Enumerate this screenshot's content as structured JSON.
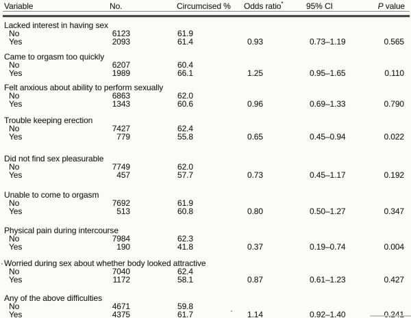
{
  "page": {
    "background": "#fbfbf8",
    "text_color": "#1f1f1f"
  },
  "header": {
    "variable": "Variable",
    "no": "No.",
    "circumcised": "Circumcised %",
    "odds_ratio": {
      "text": "Odds ratio",
      "sup": "*"
    },
    "ci": "95% CI",
    "p_italic": "P",
    "p_rest": " value"
  },
  "artifacts": {
    "worried_prefix_dot": "·"
  },
  "chart_data": {
    "type": "table",
    "columns": [
      "Variable",
      "No.",
      "Circumcised %",
      "Odds ratio*",
      "95% CI",
      "P value"
    ],
    "groups": [
      {
        "variable": "Lacked interest in having sex",
        "rows": [
          {
            "level": "No",
            "n": "6123",
            "circumcised_pct": "61.9",
            "odds_ratio": "",
            "ci_95": "",
            "p_value": ""
          },
          {
            "level": "Yes",
            "n": "2093",
            "circumcised_pct": "61.4",
            "odds_ratio": "0.93",
            "ci_95": "0.73–1.19",
            "p_value": "0.565"
          }
        ]
      },
      {
        "variable": "Came to orgasm too quickly",
        "rows": [
          {
            "level": "No",
            "n": "6207",
            "circumcised_pct": "60.4",
            "odds_ratio": "",
            "ci_95": "",
            "p_value": ""
          },
          {
            "level": "Yes",
            "n": "1989",
            "circumcised_pct": "66.1",
            "odds_ratio": "1.25",
            "ci_95": "0.95–1.65",
            "p_value": "0.110"
          }
        ]
      },
      {
        "variable": "Felt anxious about ability to perform sexually",
        "rows": [
          {
            "level": "No",
            "n": "6863",
            "circumcised_pct": "62.0",
            "odds_ratio": "",
            "ci_95": "",
            "p_value": ""
          },
          {
            "level": "Yes",
            "n": "1343",
            "circumcised_pct": "60.6",
            "odds_ratio": "0.96",
            "ci_95": "0.69–1.33",
            "p_value": "0.790"
          }
        ]
      },
      {
        "variable": "Trouble keeping erection",
        "rows": [
          {
            "level": "No",
            "n": "7427",
            "circumcised_pct": "62.4",
            "odds_ratio": "",
            "ci_95": "",
            "p_value": ""
          },
          {
            "level": "Yes",
            "n": "779",
            "circumcised_pct": "55.8",
            "odds_ratio": "0.65",
            "ci_95": "0.45–0.94",
            "p_value": "0.022"
          }
        ]
      },
      {
        "variable": "Did not find sex pleasurable",
        "rows": [
          {
            "level": "No",
            "n": "7749",
            "circumcised_pct": "62.0",
            "odds_ratio": "",
            "ci_95": "",
            "p_value": ""
          },
          {
            "level": "Yes",
            "n": "457",
            "circumcised_pct": "57.7",
            "odds_ratio": "0.73",
            "ci_95": "0.45–1.17",
            "p_value": "0.192"
          }
        ]
      },
      {
        "variable": "Unable to come to orgasm",
        "rows": [
          {
            "level": "No",
            "n": "7692",
            "circumcised_pct": "61.9",
            "odds_ratio": "",
            "ci_95": "",
            "p_value": ""
          },
          {
            "level": "Yes",
            "n": "513",
            "circumcised_pct": "60.8",
            "odds_ratio": "0.80",
            "ci_95": "0.50–1.27",
            "p_value": "0.347"
          }
        ]
      },
      {
        "variable": "Physical pain during intercourse",
        "rows": [
          {
            "level": "No",
            "n": "7984",
            "circumcised_pct": "62.3",
            "odds_ratio": "",
            "ci_95": "",
            "p_value": ""
          },
          {
            "level": "Yes",
            "n": "190",
            "circumcised_pct": "41.8",
            "odds_ratio": "0.37",
            "ci_95": "0.19–0.74",
            "p_value": "0.004"
          }
        ]
      },
      {
        "variable": "Worried during sex about whether body looked attractive",
        "rows": [
          {
            "level": "No",
            "n": "7040",
            "circumcised_pct": "62.4",
            "odds_ratio": "",
            "ci_95": "",
            "p_value": ""
          },
          {
            "level": "Yes",
            "n": "1172",
            "circumcised_pct": "58.1",
            "odds_ratio": "0.87",
            "ci_95": "0.61–1.23",
            "p_value": "0.427"
          }
        ]
      },
      {
        "variable": "Any of the above difficulties",
        "rows": [
          {
            "level": "No",
            "n": "4671",
            "circumcised_pct": "59.8",
            "odds_ratio": "",
            "ci_95": "",
            "p_value": ""
          },
          {
            "level": "Yes",
            "n": "4375",
            "circumcised_pct": "61.7",
            "odds_ratio": "1.14",
            "ci_95": "0.92–1.40",
            "p_value": "0.241"
          }
        ]
      }
    ]
  }
}
